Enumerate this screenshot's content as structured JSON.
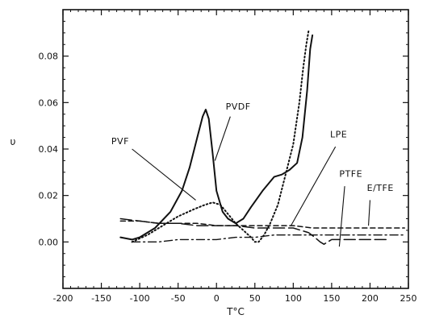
{
  "chart_data": {
    "type": "line",
    "title": "",
    "xlabel": "T°C",
    "ylabel": "υ",
    "xlim": [
      -200,
      250
    ],
    "ylim": [
      -0.02,
      0.1
    ],
    "x_ticks": [
      -200,
      -150,
      -100,
      -50,
      0,
      50,
      100,
      150,
      200,
      250
    ],
    "x_tick_labels": [
      "-200",
      "-150",
      "-100",
      "-50",
      "0",
      "50",
      "100",
      "150",
      "200",
      "250"
    ],
    "y_ticks": [
      0.0,
      0.02,
      0.04,
      0.06,
      0.08
    ],
    "y_tick_labels": [
      "0.00",
      "0.02",
      "0.04",
      "0.06",
      "0.08"
    ],
    "grid": false,
    "series": [
      {
        "name": "PVF",
        "style": "solid",
        "points": [
          [
            -125,
            0.002
          ],
          [
            -110,
            0.001
          ],
          [
            -100,
            0.002
          ],
          [
            -80,
            0.006
          ],
          [
            -60,
            0.013
          ],
          [
            -45,
            0.022
          ],
          [
            -35,
            0.032
          ],
          [
            -25,
            0.045
          ],
          [
            -18,
            0.054
          ],
          [
            -14,
            0.057
          ],
          [
            -10,
            0.053
          ],
          [
            -5,
            0.038
          ],
          [
            0,
            0.022
          ],
          [
            8,
            0.013
          ],
          [
            15,
            0.01
          ],
          [
            25,
            0.008
          ],
          [
            35,
            0.01
          ],
          [
            45,
            0.015
          ],
          [
            60,
            0.022
          ],
          [
            75,
            0.028
          ],
          [
            85,
            0.029
          ],
          [
            95,
            0.031
          ],
          [
            105,
            0.034
          ],
          [
            112,
            0.045
          ],
          [
            118,
            0.065
          ],
          [
            122,
            0.083
          ],
          [
            125,
            0.089
          ]
        ]
      },
      {
        "name": "PVDF",
        "style": "dotted",
        "points": [
          [
            -110,
            0.0
          ],
          [
            -90,
            0.003
          ],
          [
            -70,
            0.007
          ],
          [
            -50,
            0.011
          ],
          [
            -30,
            0.014
          ],
          [
            -15,
            0.016
          ],
          [
            -5,
            0.017
          ],
          [
            5,
            0.016
          ],
          [
            15,
            0.012
          ],
          [
            25,
            0.008
          ],
          [
            35,
            0.005
          ],
          [
            45,
            0.002
          ],
          [
            50,
            0.0
          ],
          [
            55,
            0.0
          ],
          [
            62,
            0.003
          ],
          [
            70,
            0.008
          ],
          [
            80,
            0.016
          ],
          [
            90,
            0.029
          ],
          [
            100,
            0.042
          ],
          [
            108,
            0.06
          ],
          [
            113,
            0.075
          ],
          [
            117,
            0.085
          ],
          [
            120,
            0.091
          ]
        ]
      },
      {
        "name": "LPE",
        "style": "dashed",
        "points": [
          [
            -125,
            0.009
          ],
          [
            -100,
            0.009
          ],
          [
            -75,
            0.008
          ],
          [
            -50,
            0.008
          ],
          [
            -25,
            0.008
          ],
          [
            0,
            0.007
          ],
          [
            25,
            0.007
          ],
          [
            50,
            0.007
          ],
          [
            75,
            0.007
          ],
          [
            100,
            0.007
          ],
          [
            125,
            0.006
          ],
          [
            150,
            0.006
          ],
          [
            175,
            0.006
          ],
          [
            200,
            0.006
          ],
          [
            225,
            0.006
          ],
          [
            245,
            0.006
          ]
        ]
      },
      {
        "name": "PTFE",
        "style": "long-dash",
        "points": [
          [
            -125,
            0.01
          ],
          [
            -100,
            0.009
          ],
          [
            -75,
            0.008
          ],
          [
            -50,
            0.008
          ],
          [
            -25,
            0.007
          ],
          [
            0,
            0.007
          ],
          [
            25,
            0.007
          ],
          [
            50,
            0.006
          ],
          [
            75,
            0.006
          ],
          [
            100,
            0.006
          ],
          [
            120,
            0.004
          ],
          [
            128,
            0.002
          ],
          [
            135,
            0.0
          ],
          [
            140,
            -0.001
          ],
          [
            145,
            0.0
          ],
          [
            150,
            0.001
          ],
          [
            170,
            0.001
          ],
          [
            200,
            0.001
          ],
          [
            225,
            0.001
          ]
        ]
      },
      {
        "name": "E/TFE",
        "style": "dash-dot",
        "points": [
          [
            -110,
            0.0
          ],
          [
            -75,
            0.0
          ],
          [
            -50,
            0.001
          ],
          [
            -25,
            0.001
          ],
          [
            0,
            0.001
          ],
          [
            25,
            0.002
          ],
          [
            50,
            0.002
          ],
          [
            75,
            0.003
          ],
          [
            100,
            0.003
          ],
          [
            125,
            0.003
          ],
          [
            150,
            0.003
          ],
          [
            175,
            0.003
          ],
          [
            200,
            0.003
          ],
          [
            225,
            0.003
          ],
          [
            245,
            0.003
          ]
        ]
      }
    ]
  }
}
